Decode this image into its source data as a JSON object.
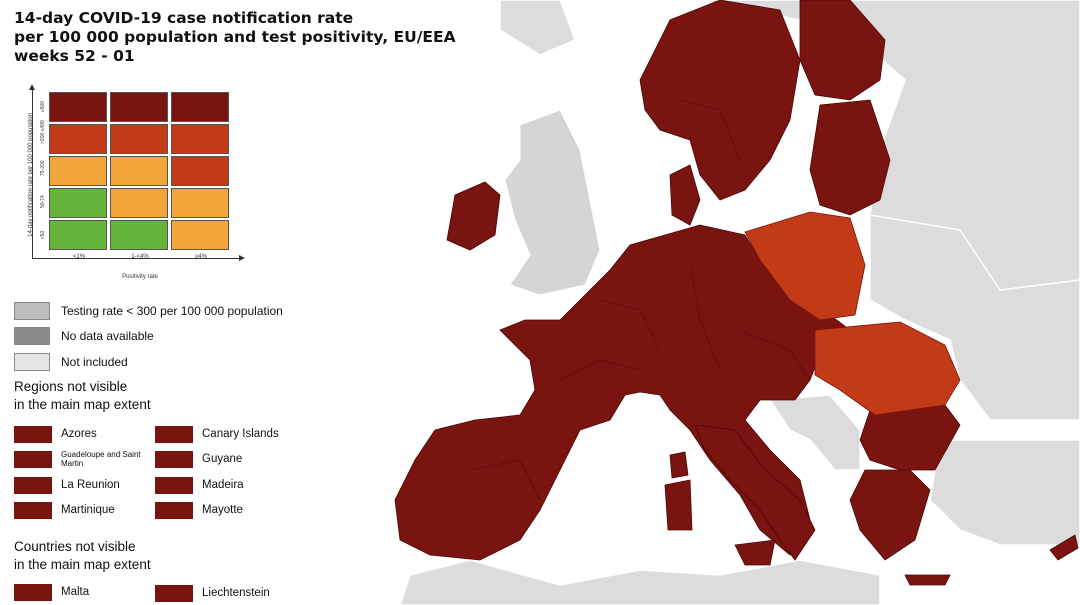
{
  "title": {
    "line1": "14-day COVID-19 case notification rate",
    "line2": "per 100 000 population and test positivity, EU/EEA",
    "line3": "weeks 52 - 01"
  },
  "colors": {
    "darkred": "#7a1410",
    "red": "#c33a17",
    "orange": "#f2a63a",
    "green": "#67b43b",
    "testing": "#bdbdbd",
    "nodata": "#8a8a8a",
    "notincluded": "#e6e6e6",
    "sea": "#ffffff",
    "land_other": "#dcdcdc"
  },
  "matrix": {
    "ylabel": "14-day notification rate per 100 000 population",
    "yticks": [
      "≥500",
      ">200 ≤499",
      "75-200",
      "50-74",
      "<50"
    ],
    "xticks": [
      "<1%",
      "1-<4%",
      "≥4%"
    ],
    "xlabel": "Positivity rate",
    "rows": [
      [
        "darkred",
        "darkred",
        "darkred"
      ],
      [
        "red",
        "red",
        "red"
      ],
      [
        "orange",
        "orange",
        "red"
      ],
      [
        "green",
        "orange",
        "orange"
      ],
      [
        "green",
        "green",
        "orange"
      ]
    ]
  },
  "legend": {
    "testing": "Testing rate < 300 per 100 000 population",
    "nodata": "No data available",
    "notincluded": "Not included"
  },
  "regions": {
    "heading1": "Regions not visible",
    "heading2": "in the main map extent",
    "items": [
      "Azores",
      "Canary Islands",
      "Guadeloupe and Saint Martin",
      "Guyane",
      "La Reunion",
      "Madeira",
      "Martinique",
      "Mayotte"
    ]
  },
  "countries": {
    "heading1": "Countries not visible",
    "heading2": "in the main map extent",
    "items": [
      "Malta",
      "Liechtenstein"
    ]
  }
}
